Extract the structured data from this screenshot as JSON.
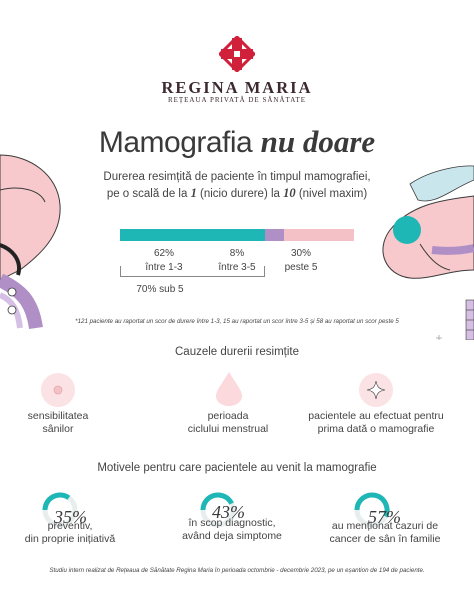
{
  "brand": {
    "name": "REGINA MARIA",
    "subtitle": "REȚEAUA PRIVATĂ DE SĂNĂTATE",
    "logo_color": "#d0203a"
  },
  "headline": {
    "part1": "Mamografia",
    "part2": "nu doare"
  },
  "description": {
    "line1": "Durerea resimțită de paciente în timpul mamografiei,",
    "line2_pre": "pe o scală de la ",
    "line2_num1": "1",
    "line2_mid1": " (nicio durere) la ",
    "line2_num2": "10",
    "line2_post": " (nivel maxim)"
  },
  "pain_scale": {
    "segments": [
      {
        "percent_label": "62%",
        "range_label": "între 1-3",
        "value": 62,
        "color": "#1fb7b6"
      },
      {
        "percent_label": "8%",
        "range_label": "între 3-5",
        "value": 8,
        "color": "#b08fc7"
      },
      {
        "percent_label": "30%",
        "range_label": "peste 5",
        "value": 30,
        "color": "#f4c1c7"
      }
    ],
    "summary_label": "70% sub 5"
  },
  "footnote_top": "*121 paciente au raportat un scor de durere între 1-3, 15 au raportat un scor între 3-5 și 58 au raportat un scor peste 5",
  "causes": {
    "title": "Cauzele durerii resimțite",
    "items": [
      {
        "icon": "breast-circle-icon",
        "line1": "sensibilitatea",
        "line2": "sânilor"
      },
      {
        "icon": "drop-icon",
        "line1": "perioada",
        "line2": "ciclului menstrual"
      },
      {
        "icon": "sparkle-icon",
        "line1": "pacientele au efectuat pentru",
        "line2": "prima dată o mamografie"
      }
    ]
  },
  "motives": {
    "title": "Motivele pentru care pacientele au venit la mamografie",
    "items": [
      {
        "percent": "35%",
        "value": 35,
        "line1": "preventiv,",
        "line2": "din proprie inițiativă"
      },
      {
        "percent": "43%",
        "value": 43,
        "line1": "în scop diagnostic,",
        "line2": "având deja simptome"
      },
      {
        "percent": "57%",
        "value": 57,
        "line1": "au menționat cazuri de",
        "line2": "cancer de sân în familie"
      }
    ]
  },
  "footnote_bottom": "Studiu intern realizat de Rețeaua de Sănătate Regina Maria în perioada octombrie - decembrie 2023, pe un eșantion de 194 de paciente.",
  "colors": {
    "teal": "#1fb7b6",
    "lilac": "#b08fc7",
    "pink": "#f4c1c7",
    "skin": "#f7c9cc"
  }
}
